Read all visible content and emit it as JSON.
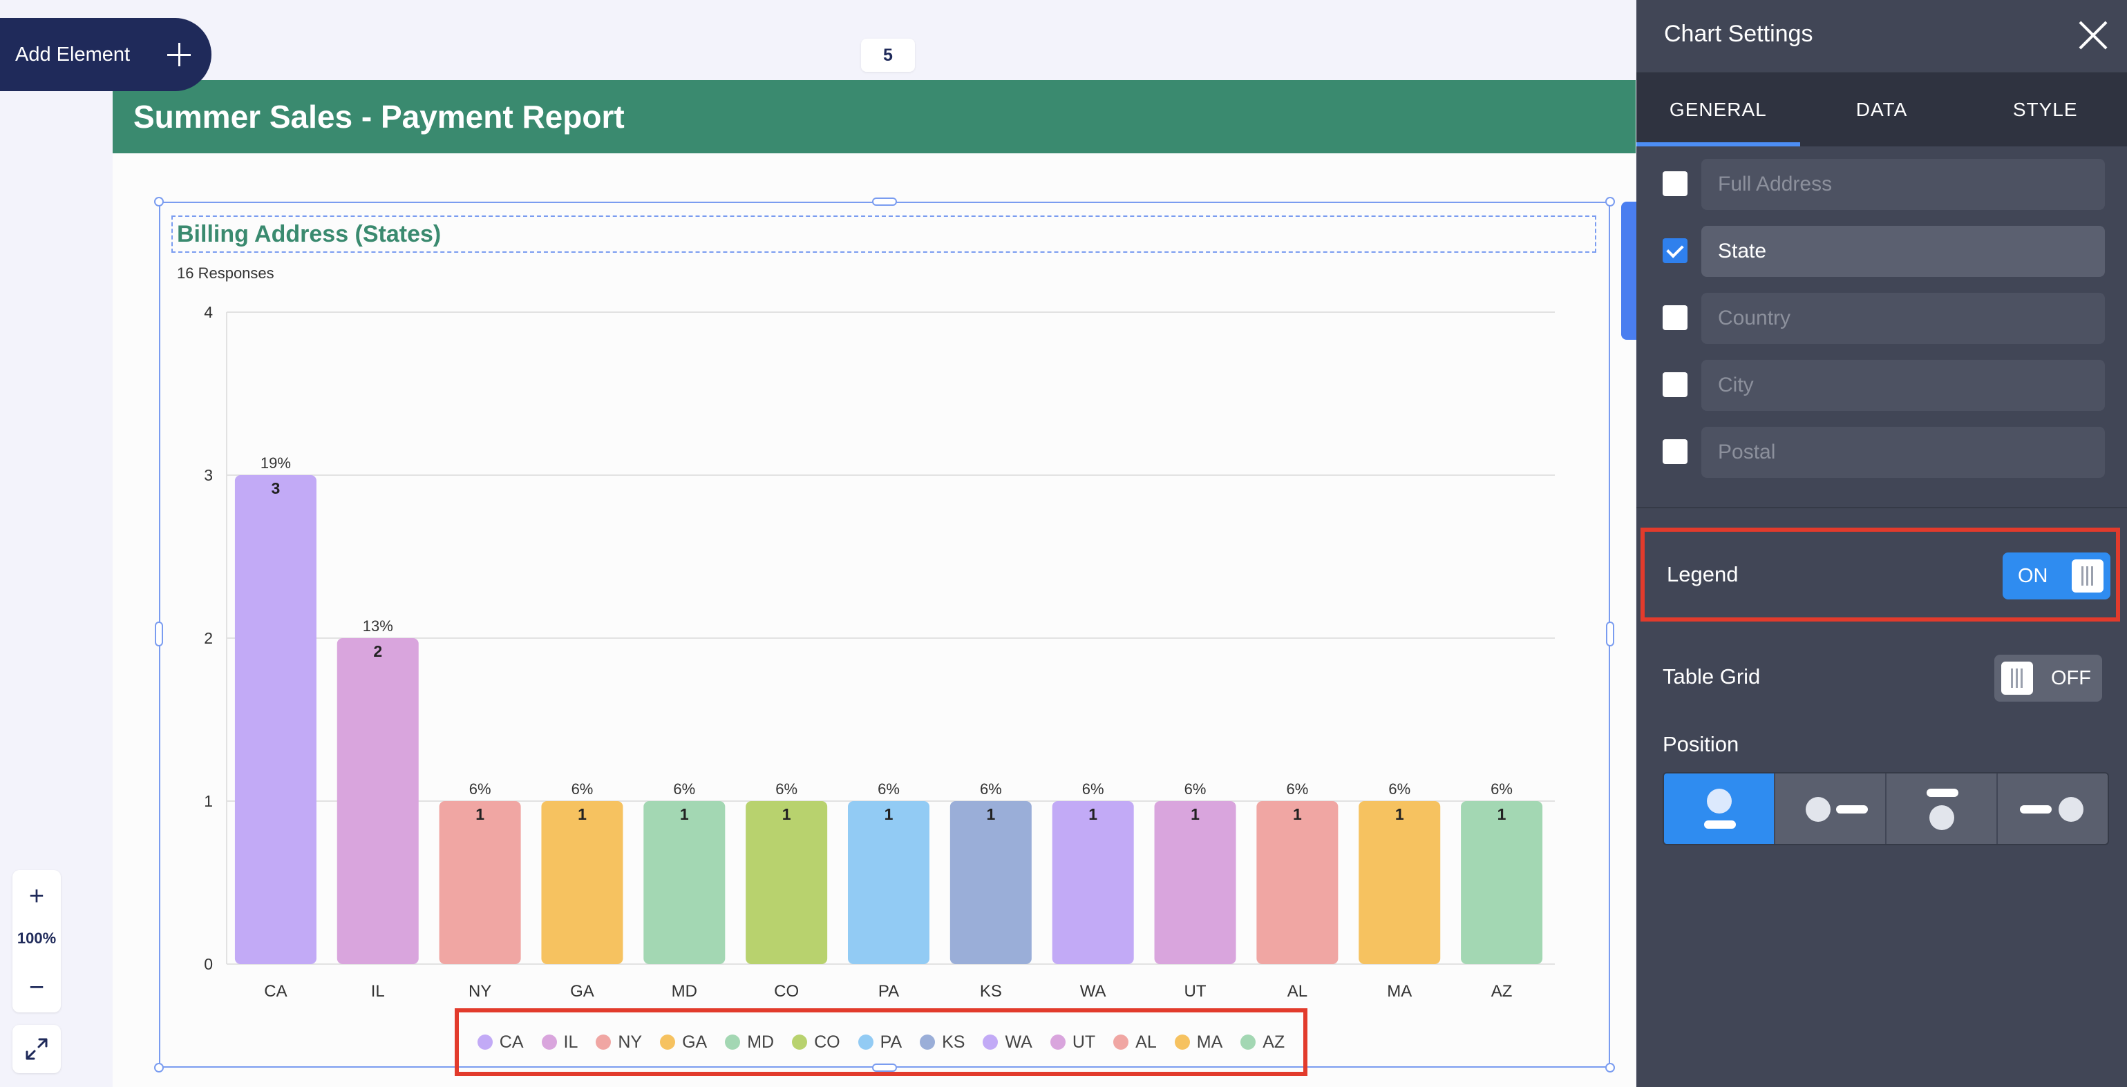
{
  "toolbar": {
    "add_element_label": "Add Element"
  },
  "page_number": "5",
  "report": {
    "title": "Summer Sales - Payment Report"
  },
  "chart": {
    "title": "Billing Address (States)",
    "responses": "16 Responses"
  },
  "chart_data": {
    "type": "bar",
    "categories": [
      "CA",
      "IL",
      "NY",
      "GA",
      "MD",
      "CO",
      "PA",
      "KS",
      "WA",
      "UT",
      "AL",
      "MA",
      "AZ"
    ],
    "values": [
      3,
      2,
      1,
      1,
      1,
      1,
      1,
      1,
      1,
      1,
      1,
      1,
      1
    ],
    "percent_labels": [
      "19%",
      "13%",
      "6%",
      "6%",
      "6%",
      "6%",
      "6%",
      "6%",
      "6%",
      "6%",
      "6%",
      "6%",
      "6%"
    ],
    "colors": [
      "#c2aaf6",
      "#d9a5dd",
      "#f0a6a3",
      "#f6c260",
      "#a3d7b3",
      "#b8d26e",
      "#92cbf4",
      "#9aaed8",
      "#c2aaf6",
      "#d9a5dd",
      "#f0a6a3",
      "#f6c260",
      "#a3d7b3"
    ],
    "yticks": [
      "0",
      "1",
      "2",
      "3",
      "4"
    ],
    "ylim": [
      0,
      4
    ],
    "grid": true,
    "legend": "bottom",
    "title": "Billing Address (States)",
    "xlabel": "",
    "ylabel": ""
  },
  "zoom": {
    "in_label": "+",
    "level": "100%",
    "out_label": "−"
  },
  "panel": {
    "title": "Chart Settings",
    "tabs": [
      "GENERAL",
      "DATA",
      "STYLE"
    ],
    "fields": [
      {
        "label": "Full Address",
        "checked": false
      },
      {
        "label": "State",
        "checked": true
      },
      {
        "label": "Country",
        "checked": false
      },
      {
        "label": "City",
        "checked": false
      },
      {
        "label": "Postal",
        "checked": false
      }
    ],
    "legend_label": "Legend",
    "legend_toggle": "ON",
    "table_grid_label": "Table Grid",
    "table_grid_toggle": "OFF",
    "position_label": "Position"
  }
}
